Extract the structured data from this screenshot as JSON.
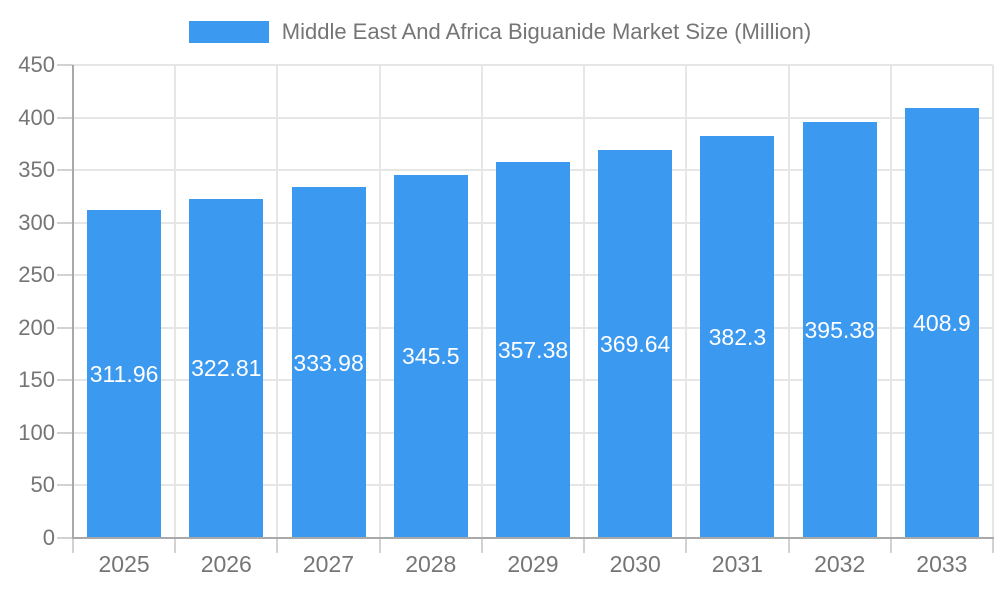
{
  "chart_data": {
    "type": "bar",
    "title": "Middle East And Africa Biguanide Market Size (Million)",
    "legend_position": "top",
    "categories": [
      "2025",
      "2026",
      "2027",
      "2028",
      "2029",
      "2030",
      "2031",
      "2032",
      "2033"
    ],
    "values": [
      311.96,
      322.81,
      333.98,
      345.5,
      357.38,
      369.64,
      382.3,
      395.38,
      408.9
    ],
    "value_labels": [
      "311.96",
      "322.81",
      "333.98",
      "345.5",
      "357.38",
      "369.64",
      "382.3",
      "395.38",
      "408.9"
    ],
    "xlabel": "",
    "ylabel": "",
    "ylim": [
      0,
      450
    ],
    "ytick_step": 50,
    "ytick_labels": [
      "0",
      "50",
      "100",
      "150",
      "200",
      "250",
      "300",
      "350",
      "400",
      "450"
    ],
    "grid": true,
    "colors": {
      "bar": "#3B99F0",
      "bar_value_text": "#ffffff",
      "axis_text": "#757575",
      "axis_line": "#a9a9a9",
      "grid_line": "#e6e6e6",
      "tick_line": "#d2d2d2",
      "background": "#ffffff"
    }
  }
}
